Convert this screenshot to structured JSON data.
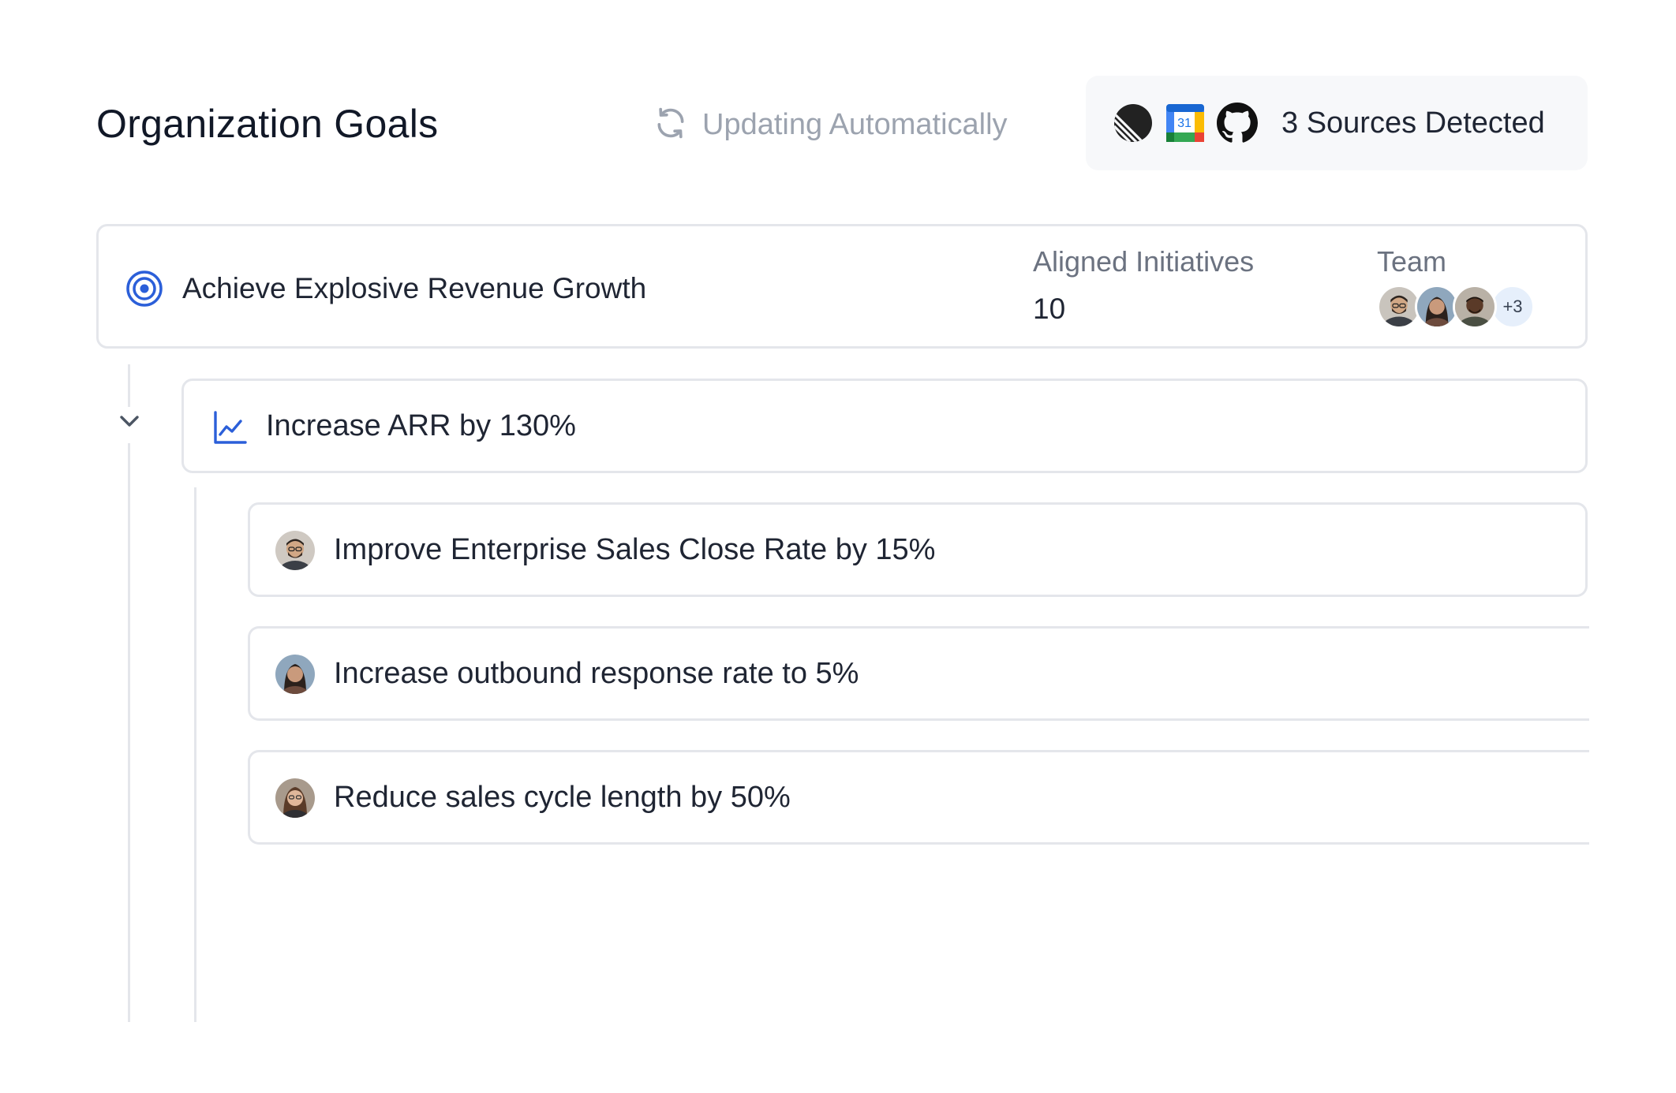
{
  "header": {
    "title": "Organization Goals",
    "sync_status": "Updating Automatically",
    "sources": {
      "icons": [
        "linear-icon",
        "google-calendar-icon",
        "github-icon"
      ],
      "calendar_day": "31",
      "label": "3 Sources Detected"
    }
  },
  "goal": {
    "title": "Achieve Explosive Revenue Growth",
    "aligned_label": "Aligned Initiatives",
    "aligned_value": "10",
    "team_label": "Team",
    "team_more": "+3"
  },
  "key_result": {
    "title": "Increase ARR by 130%"
  },
  "initiatives": [
    {
      "title": "Improve Enterprise Sales Close Rate by 15%"
    },
    {
      "title": "Increase outbound response rate to 5%"
    },
    {
      "title": "Reduce sales cycle length by 50%"
    }
  ],
  "colors": {
    "accent": "#2b5fd9",
    "muted_text": "#9ca3af",
    "label_text": "#6b7280",
    "border": "#e4e6eb",
    "sources_bg": "#f7f8fa"
  }
}
